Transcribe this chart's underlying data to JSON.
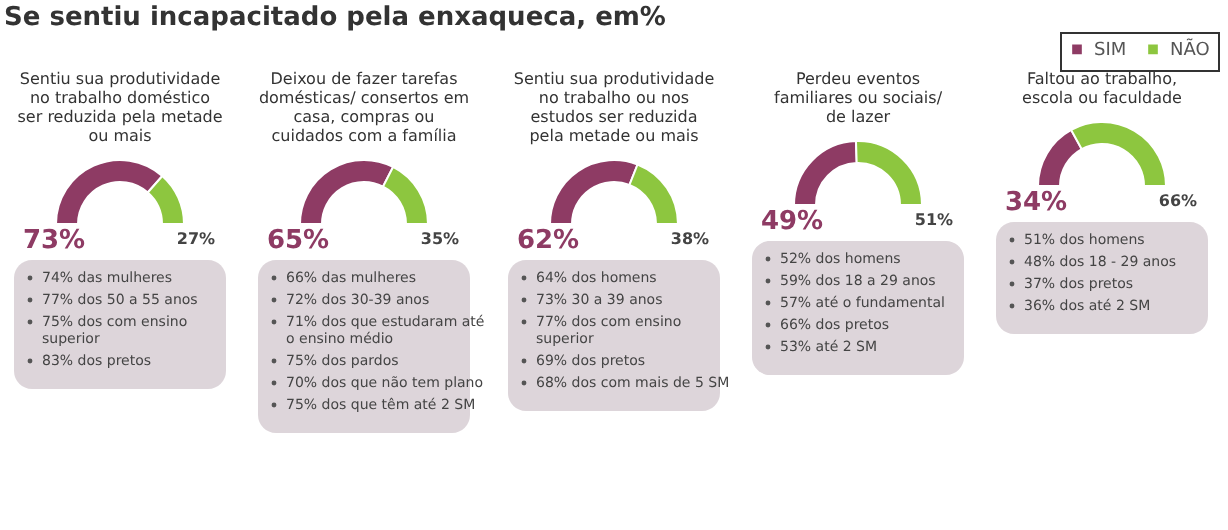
{
  "chart_data": [
    {
      "type": "donut",
      "title": "Se sentiu incapacitado pela enxaqueca, em%",
      "subtitle": "Sentiu sua produtividade no trabalho doméstico ser reduzida pela metade ou mais",
      "categories": [
        null,
        null
      ],
      "values": [
        73,
        27
      ],
      "value_labels": [
        "73%",
        "27%"
      ],
      "colors": [
        "#8e3b64",
        "#8dc63f"
      ],
      "annotations": [
        "74% das mulheres",
        "77% dos 50 a 55 anos",
        "75% dos com ensino superior",
        "83% dos pretos"
      ]
    },
    {
      "type": "donut",
      "subtitle": "Deixou de fazer tarefas domésticas/ consertos em casa, compras ou cuidados com a família",
      "categories": [
        null,
        null
      ],
      "values": [
        65,
        35
      ],
      "value_labels": [
        "65%",
        "35%"
      ],
      "colors": [
        "#8e3b64",
        "#8dc63f"
      ],
      "annotations": [
        "66% das mulheres",
        "72% dos 30-39 anos",
        "71% dos que estudaram até o ensino médio",
        "75% dos pardos",
        "70% dos que não tem plano",
        "75% dos que têm até 2 SM"
      ]
    },
    {
      "type": "donut",
      "subtitle": "Sentiu sua produtividade no trabalho ou nos estudos ser reduzida pela metade ou mais",
      "categories": [
        null,
        null
      ],
      "values": [
        62,
        38
      ],
      "value_labels": [
        "62%",
        "38%"
      ],
      "colors": [
        "#8e3b64",
        "#8dc63f"
      ],
      "annotations": [
        "64% dos homens",
        "73% 30 a 39 anos",
        "77% dos com ensino superior",
        "69% dos pretos",
        "68% dos com mais de 5 SM"
      ]
    },
    {
      "type": "donut",
      "subtitle": "Perdeu eventos familiares ou sociais/ de lazer",
      "categories": [
        null,
        null
      ],
      "values": [
        49,
        51
      ],
      "value_labels": [
        "49%",
        "51%"
      ],
      "colors": [
        "#8e3b64",
        "#8dc63f"
      ],
      "annotations": [
        "52% dos homens",
        "59% dos 18 a 29 anos",
        "57% até o fundamental",
        "66% dos pretos",
        "53% até 2 SM"
      ]
    },
    {
      "type": "donut",
      "subtitle": "Faltou ao trabalho, escola ou faculdade",
      "categories": [
        "SIM",
        "NÃO"
      ],
      "values": [
        34,
        66
      ],
      "value_labels": [
        "34%",
        "66%"
      ],
      "colors": [
        "#8e3b64",
        "#8dc63f"
      ],
      "legend": "top right",
      "annotations": [
        "51% dos homens",
        "48% dos 18 - 29 anos",
        "37% dos pretos",
        "36% dos até 2 SM"
      ]
    }
  ]
}
